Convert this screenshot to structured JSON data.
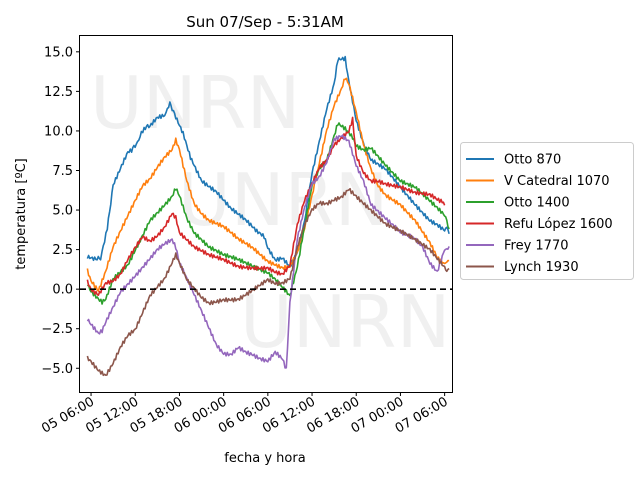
{
  "chart_data": {
    "type": "line",
    "title": "Sun 07/Sep - 5:31AM",
    "xlabel": "fecha y hora",
    "ylabel": "temperatura [ºC]",
    "x_unit": "hours",
    "x_reference": "05 00:00",
    "xlim": [
      4.5,
      55.0
    ],
    "ylim": [
      -6.5,
      16.0
    ],
    "xticks": [
      {
        "value": 6,
        "label": "05 06:00"
      },
      {
        "value": 12,
        "label": "05 12:00"
      },
      {
        "value": 18,
        "label": "05 18:00"
      },
      {
        "value": 24,
        "label": "06 00:00"
      },
      {
        "value": 30,
        "label": "06 06:00"
      },
      {
        "value": 36,
        "label": "06 12:00"
      },
      {
        "value": 42,
        "label": "06 18:00"
      },
      {
        "value": 48,
        "label": "07 00:00"
      },
      {
        "value": 54,
        "label": "07 06:00"
      }
    ],
    "yticks": [
      -5.0,
      -2.5,
      0.0,
      2.5,
      5.0,
      7.5,
      10.0,
      12.5,
      15.0
    ],
    "ytick_labels": [
      "−5.0",
      "−2.5",
      "0.0",
      "2.5",
      "5.0",
      "7.5",
      "10.0",
      "12.5",
      "15.0"
    ],
    "reference_line": {
      "y": 0,
      "style": "dashed",
      "color": "#000000"
    },
    "legend_position": "right",
    "watermark": "UNRN",
    "series": [
      {
        "name": "Otto 870",
        "color": "#1f77b4",
        "points": [
          [
            5.5,
            2.2
          ],
          [
            6.5,
            2.0
          ],
          [
            7.3,
            1.8
          ],
          [
            8.2,
            4.0
          ],
          [
            9,
            6.5
          ],
          [
            10,
            7.5
          ],
          [
            11,
            8.5
          ],
          [
            11.5,
            8.6
          ],
          [
            12.3,
            9.2
          ],
          [
            13.2,
            10.0
          ],
          [
            14,
            10.2
          ],
          [
            15,
            10.8
          ],
          [
            16,
            11.0
          ],
          [
            16.7,
            11.6
          ],
          [
            17.5,
            11.0
          ],
          [
            18.5,
            10.0
          ],
          [
            19.5,
            8.5
          ],
          [
            21,
            7.0
          ],
          [
            23,
            6.2
          ],
          [
            25,
            5.0
          ],
          [
            27,
            4.2
          ],
          [
            28.5,
            3.5
          ],
          [
            29.5,
            3.2
          ],
          [
            30,
            2.5
          ],
          [
            31,
            1.8
          ],
          [
            32,
            2.0
          ],
          [
            33,
            1.5
          ],
          [
            34,
            2.5
          ],
          [
            35,
            4.5
          ],
          [
            36,
            7.5
          ],
          [
            37,
            9.5
          ],
          [
            38,
            11.5
          ],
          [
            39,
            13.0
          ],
          [
            39.5,
            14.5
          ],
          [
            40.5,
            14.5
          ],
          [
            41,
            13.0
          ],
          [
            42,
            10.5
          ],
          [
            43,
            9.0
          ],
          [
            44,
            8.0
          ],
          [
            46,
            7.5
          ],
          [
            48,
            6.5
          ],
          [
            50,
            5.5
          ],
          [
            52,
            4.5
          ],
          [
            53,
            4.2
          ],
          [
            54,
            3.8
          ],
          [
            54.6,
            3.5
          ]
        ]
      },
      {
        "name": "V Catedral 1070",
        "color": "#ff7f0e",
        "points": [
          [
            5.5,
            1.2
          ],
          [
            6,
            0.5
          ],
          [
            7,
            -0.2
          ],
          [
            8,
            1.0
          ],
          [
            9,
            2.5
          ],
          [
            10,
            3.5
          ],
          [
            11,
            4.5
          ],
          [
            12,
            5.5
          ],
          [
            13,
            6.5
          ],
          [
            14,
            7.0
          ],
          [
            15,
            7.8
          ],
          [
            16,
            8.5
          ],
          [
            17,
            9.0
          ],
          [
            17.5,
            9.6
          ],
          [
            18,
            9.0
          ],
          [
            19,
            7.0
          ],
          [
            20,
            5.5
          ],
          [
            21,
            4.8
          ],
          [
            22,
            4.3
          ],
          [
            24,
            3.8
          ],
          [
            26,
            3.0
          ],
          [
            28,
            2.5
          ],
          [
            30,
            1.8
          ],
          [
            32,
            1.5
          ],
          [
            33,
            1.6
          ],
          [
            34,
            2.5
          ],
          [
            35,
            4.0
          ],
          [
            36,
            6.0
          ],
          [
            37,
            8.0
          ],
          [
            38,
            10.0
          ],
          [
            39,
            11.5
          ],
          [
            40,
            12.5
          ],
          [
            40.5,
            13.2
          ],
          [
            41,
            12.8
          ],
          [
            42,
            11.0
          ],
          [
            43,
            9.0
          ],
          [
            44,
            7.5
          ],
          [
            45,
            6.5
          ],
          [
            46,
            6.0
          ],
          [
            48,
            5.5
          ],
          [
            50,
            4.5
          ],
          [
            52,
            3.0
          ],
          [
            53,
            2.0
          ],
          [
            54,
            1.5
          ],
          [
            54.6,
            1.8
          ]
        ]
      },
      {
        "name": "Otto 1400",
        "color": "#2ca02c",
        "points": [
          [
            5.5,
            0.2
          ],
          [
            6,
            -0.3
          ],
          [
            7,
            -0.8
          ],
          [
            7.5,
            -1.0
          ],
          [
            8,
            -0.8
          ],
          [
            9,
            0.5
          ],
          [
            10,
            1.0
          ],
          [
            11,
            1.5
          ],
          [
            12,
            2.5
          ],
          [
            13,
            3.5
          ],
          [
            14,
            4.5
          ],
          [
            15,
            5.0
          ],
          [
            16,
            5.5
          ],
          [
            17,
            6.0
          ],
          [
            17.5,
            6.5
          ],
          [
            18,
            6.0
          ],
          [
            19,
            4.5
          ],
          [
            20,
            3.5
          ],
          [
            21,
            3.0
          ],
          [
            22,
            2.5
          ],
          [
            24,
            2.0
          ],
          [
            26,
            1.8
          ],
          [
            28,
            1.5
          ],
          [
            30,
            1.2
          ],
          [
            31,
            0.8
          ],
          [
            32,
            0.3
          ],
          [
            33,
            -0.3
          ],
          [
            34,
            1.5
          ],
          [
            35,
            4.0
          ],
          [
            36,
            6.5
          ],
          [
            37,
            7.5
          ],
          [
            38,
            8.0
          ],
          [
            39,
            9.5
          ],
          [
            39.5,
            10.3
          ],
          [
            40.5,
            10.0
          ],
          [
            41.5,
            9.5
          ],
          [
            42,
            9.0
          ],
          [
            43,
            8.8
          ],
          [
            44,
            9.0
          ],
          [
            45,
            8.5
          ],
          [
            46,
            8.0
          ],
          [
            48,
            7.0
          ],
          [
            50,
            6.5
          ],
          [
            52,
            5.5
          ],
          [
            53,
            5.0
          ],
          [
            54,
            4.5
          ],
          [
            54.6,
            3.8
          ]
        ]
      },
      {
        "name": "Refu López 1600",
        "color": "#d62728",
        "points": [
          [
            5.5,
            0.3
          ],
          [
            6,
            -0.2
          ],
          [
            7,
            -0.5
          ],
          [
            8,
            0.3
          ],
          [
            9,
            0.5
          ],
          [
            10,
            1.0
          ],
          [
            11,
            2.0
          ],
          [
            12,
            2.8
          ],
          [
            13,
            3.5
          ],
          [
            14,
            3.2
          ],
          [
            15,
            3.5
          ],
          [
            16,
            4.0
          ],
          [
            17,
            4.8
          ],
          [
            17.5,
            4.5
          ],
          [
            18,
            3.5
          ],
          [
            19,
            3.0
          ],
          [
            20,
            2.5
          ],
          [
            22,
            2.0
          ],
          [
            24,
            1.8
          ],
          [
            26,
            1.5
          ],
          [
            28,
            1.5
          ],
          [
            30,
            1.5
          ],
          [
            31,
            1.2
          ],
          [
            32,
            1.0
          ],
          [
            33,
            1.5
          ],
          [
            34,
            4.0
          ],
          [
            35,
            5.5
          ],
          [
            36,
            6.5
          ],
          [
            37,
            7.5
          ],
          [
            38,
            8.0
          ],
          [
            39,
            9.0
          ],
          [
            40,
            9.5
          ],
          [
            41,
            10.0
          ],
          [
            41.5,
            10.8
          ],
          [
            42,
            8.5
          ],
          [
            43,
            7.5
          ],
          [
            44,
            7.0
          ],
          [
            45,
            7.0
          ],
          [
            46,
            6.8
          ],
          [
            48,
            6.5
          ],
          [
            50,
            6.0
          ],
          [
            52,
            5.8
          ],
          [
            53,
            5.5
          ],
          [
            54,
            5.3
          ]
        ]
      },
      {
        "name": "Frey 1770",
        "color": "#9467bd",
        "points": [
          [
            5.5,
            -2.0
          ],
          [
            6,
            -2.3
          ],
          [
            7,
            -2.8
          ],
          [
            7.5,
            -2.6
          ],
          [
            8,
            -2.0
          ],
          [
            9,
            -1.0
          ],
          [
            10,
            0.0
          ],
          [
            11,
            0.5
          ],
          [
            12,
            1.0
          ],
          [
            13,
            1.5
          ],
          [
            14,
            2.0
          ],
          [
            15,
            2.5
          ],
          [
            16,
            2.8
          ],
          [
            17,
            3.0
          ],
          [
            17.5,
            2.5
          ],
          [
            18,
            1.5
          ],
          [
            19,
            0.5
          ],
          [
            20,
            -0.5
          ],
          [
            21,
            -1.5
          ],
          [
            22,
            -2.5
          ],
          [
            23,
            -3.5
          ],
          [
            24,
            -4.0
          ],
          [
            25,
            -4.0
          ],
          [
            26,
            -3.5
          ],
          [
            27,
            -3.8
          ],
          [
            28,
            -4.0
          ],
          [
            29,
            -4.3
          ],
          [
            30,
            -4.5
          ],
          [
            31,
            -4.0
          ],
          [
            32,
            -4.5
          ],
          [
            32.5,
            -5.2
          ],
          [
            33,
            -1.0
          ],
          [
            34,
            3.0
          ],
          [
            35,
            5.0
          ],
          [
            36,
            6.5
          ],
          [
            37,
            7.0
          ],
          [
            38,
            8.0
          ],
          [
            39,
            9.5
          ],
          [
            40,
            9.8
          ],
          [
            41,
            9.5
          ],
          [
            42,
            8.0
          ],
          [
            43,
            7.0
          ],
          [
            44,
            5.5
          ],
          [
            45,
            5.0
          ],
          [
            46,
            4.5
          ],
          [
            48,
            3.5
          ],
          [
            50,
            3.0
          ],
          [
            51,
            2.5
          ],
          [
            52,
            1.5
          ],
          [
            53,
            1.0
          ],
          [
            54,
            2.5
          ],
          [
            54.6,
            2.7
          ]
        ]
      },
      {
        "name": "Lynch 1930",
        "color": "#8c564b",
        "points": [
          [
            5.5,
            -4.3
          ],
          [
            6,
            -4.5
          ],
          [
            7,
            -5.0
          ],
          [
            8,
            -5.3
          ],
          [
            9,
            -4.5
          ],
          [
            10,
            -3.5
          ],
          [
            11,
            -2.8
          ],
          [
            12,
            -2.5
          ],
          [
            13,
            -1.5
          ],
          [
            14,
            -0.5
          ],
          [
            15,
            0.0
          ],
          [
            16,
            0.5
          ],
          [
            17,
            1.5
          ],
          [
            17.5,
            2.0
          ],
          [
            18,
            1.5
          ],
          [
            19,
            0.5
          ],
          [
            20,
            0.0
          ],
          [
            21,
            -0.5
          ],
          [
            22,
            -0.8
          ],
          [
            24,
            -0.5
          ],
          [
            26,
            -0.5
          ],
          [
            28,
            0.0
          ],
          [
            30,
            0.5
          ],
          [
            31,
            0.2
          ],
          [
            32,
            0.2
          ],
          [
            33,
            0.5
          ],
          [
            34,
            2.5
          ],
          [
            35,
            4.0
          ],
          [
            36,
            5.0
          ],
          [
            37,
            5.5
          ],
          [
            38,
            5.5
          ],
          [
            39,
            5.8
          ],
          [
            40,
            6.0
          ],
          [
            41,
            6.5
          ],
          [
            42,
            6.0
          ],
          [
            43,
            5.5
          ],
          [
            44,
            5.0
          ],
          [
            45,
            4.5
          ],
          [
            46,
            4.0
          ],
          [
            48,
            3.5
          ],
          [
            50,
            3.0
          ],
          [
            52,
            2.5
          ],
          [
            53,
            2.0
          ],
          [
            54,
            1.5
          ],
          [
            54.6,
            1.3
          ]
        ]
      }
    ]
  }
}
